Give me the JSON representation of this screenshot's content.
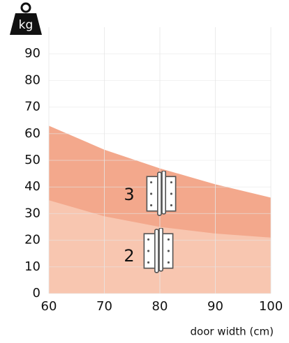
{
  "chart_data": {
    "type": "area",
    "icon_label": "kg",
    "x_label": "door width (cm)",
    "x": [
      60,
      70,
      80,
      90,
      100
    ],
    "series": [
      {
        "name": "2",
        "color": "#f8c6b0",
        "values": [
          35,
          29,
          25,
          22.5,
          21
        ]
      },
      {
        "name": "3",
        "color": "#f3a88c",
        "values": [
          63,
          54,
          47,
          41,
          36
        ]
      }
    ],
    "xlim": [
      60,
      100
    ],
    "xticks": [
      60,
      70,
      80,
      90,
      100
    ],
    "ylim": [
      0,
      100
    ],
    "yticks": [
      0,
      10,
      20,
      30,
      40,
      50,
      60,
      70,
      80,
      90
    ],
    "grid": true
  }
}
